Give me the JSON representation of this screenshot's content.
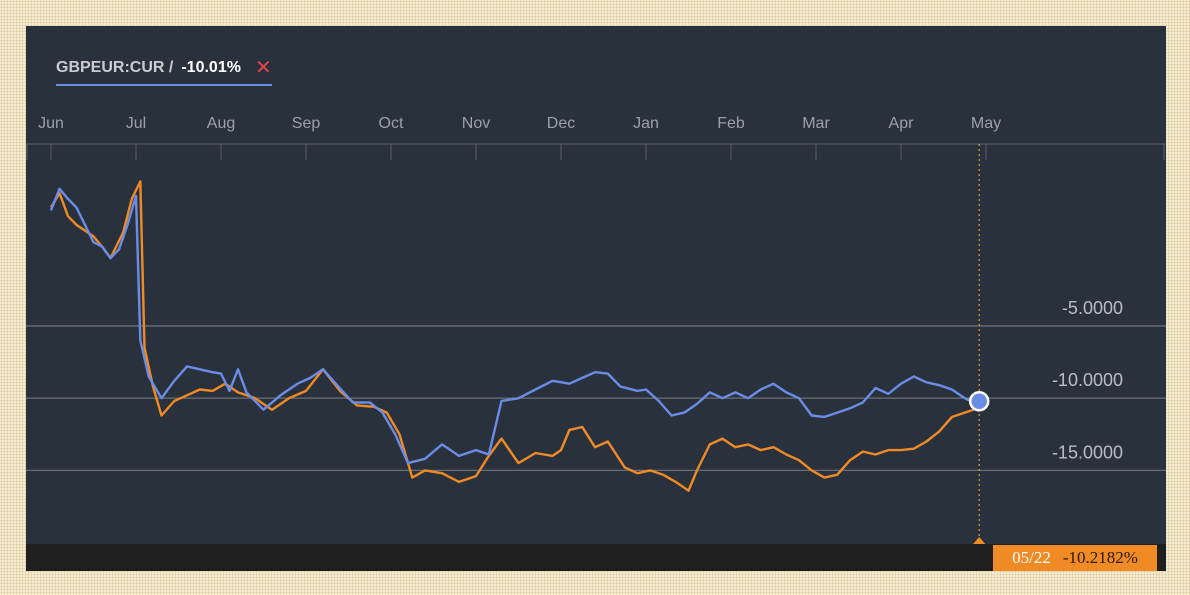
{
  "legend": {
    "symbol": "GBPEUR:CUR /",
    "change": "-10.01%",
    "close_glyph": "✕"
  },
  "crosshair": {
    "date_label": "05/22",
    "value_label": "-10.2182%"
  },
  "colors": {
    "primary_series": "#6b8ce6",
    "comparison_series": "#f08a24",
    "background": "#29313d"
  },
  "chart_data": {
    "type": "line",
    "title": "",
    "xlabel": "",
    "ylabel": "",
    "x_ticks": [
      "Jun",
      "Jul",
      "Aug",
      "Sep",
      "Oct",
      "Nov",
      "Dec",
      "Jan",
      "Feb",
      "Mar",
      "Apr",
      "May"
    ],
    "y_ticks": [
      -5,
      -10,
      -15
    ],
    "y_tick_labels": [
      "-5.0000",
      "-10.0000",
      "-15.0000"
    ],
    "ylim": [
      -20.1,
      7.6
    ],
    "xlim": [
      0,
      12.2
    ],
    "grid": true,
    "series": [
      {
        "name": "GBPEUR:CUR",
        "color": "#6b8ce6",
        "points": [
          [
            0.0,
            3.0
          ],
          [
            0.1,
            4.5
          ],
          [
            0.2,
            3.8
          ],
          [
            0.3,
            3.2
          ],
          [
            0.4,
            2.0
          ],
          [
            0.5,
            0.8
          ],
          [
            0.6,
            0.5
          ],
          [
            0.7,
            -0.3
          ],
          [
            0.8,
            0.3
          ],
          [
            0.9,
            2.0
          ],
          [
            1.0,
            4.0
          ],
          [
            1.05,
            -6.0
          ],
          [
            1.15,
            -8.5
          ],
          [
            1.3,
            -10.0
          ],
          [
            1.45,
            -8.8
          ],
          [
            1.6,
            -7.8
          ],
          [
            1.75,
            -8.0
          ],
          [
            1.9,
            -8.2
          ],
          [
            2.0,
            -8.3
          ],
          [
            2.1,
            -9.5
          ],
          [
            2.2,
            -8.0
          ],
          [
            2.3,
            -9.6
          ],
          [
            2.5,
            -10.8
          ],
          [
            2.7,
            -9.8
          ],
          [
            2.9,
            -9.0
          ],
          [
            3.05,
            -8.6
          ],
          [
            3.2,
            -8.0
          ],
          [
            3.35,
            -9.0
          ],
          [
            3.55,
            -10.3
          ],
          [
            3.75,
            -10.3
          ],
          [
            3.9,
            -11.0
          ],
          [
            4.05,
            -12.5
          ],
          [
            4.2,
            -14.5
          ],
          [
            4.4,
            -14.2
          ],
          [
            4.6,
            -13.2
          ],
          [
            4.8,
            -14.0
          ],
          [
            5.0,
            -13.6
          ],
          [
            5.15,
            -13.9
          ],
          [
            5.3,
            -10.2
          ],
          [
            5.5,
            -10.0
          ],
          [
            5.7,
            -9.4
          ],
          [
            5.9,
            -8.8
          ],
          [
            6.1,
            -9.0
          ],
          [
            6.25,
            -8.6
          ],
          [
            6.4,
            -8.2
          ],
          [
            6.55,
            -8.3
          ],
          [
            6.7,
            -9.2
          ],
          [
            6.9,
            -9.5
          ],
          [
            7.0,
            -9.4
          ],
          [
            7.15,
            -10.2
          ],
          [
            7.3,
            -11.2
          ],
          [
            7.45,
            -11.0
          ],
          [
            7.6,
            -10.4
          ],
          [
            7.75,
            -9.6
          ],
          [
            7.9,
            -10.0
          ],
          [
            8.05,
            -9.6
          ],
          [
            8.2,
            -10.0
          ],
          [
            8.35,
            -9.4
          ],
          [
            8.5,
            -9.0
          ],
          [
            8.65,
            -9.6
          ],
          [
            8.8,
            -10.0
          ],
          [
            8.95,
            -11.2
          ],
          [
            9.1,
            -11.3
          ],
          [
            9.25,
            -11.0
          ],
          [
            9.4,
            -10.7
          ],
          [
            9.55,
            -10.3
          ],
          [
            9.7,
            -9.3
          ],
          [
            9.85,
            -9.7
          ],
          [
            10.0,
            -9.0
          ],
          [
            10.15,
            -8.5
          ],
          [
            10.3,
            -8.9
          ],
          [
            10.45,
            -9.1
          ],
          [
            10.6,
            -9.4
          ],
          [
            10.75,
            -10.0
          ],
          [
            10.85,
            -10.3
          ],
          [
            10.92,
            -10.2
          ]
        ]
      },
      {
        "name": "",
        "color": "#f08a24",
        "points": [
          [
            0.0,
            3.2
          ],
          [
            0.1,
            4.2
          ],
          [
            0.2,
            2.6
          ],
          [
            0.3,
            2.0
          ],
          [
            0.4,
            1.6
          ],
          [
            0.5,
            1.2
          ],
          [
            0.6,
            0.5
          ],
          [
            0.7,
            -0.3
          ],
          [
            0.85,
            1.5
          ],
          [
            0.95,
            3.8
          ],
          [
            1.05,
            5.0
          ],
          [
            1.1,
            -6.5
          ],
          [
            1.2,
            -9.2
          ],
          [
            1.3,
            -11.2
          ],
          [
            1.45,
            -10.2
          ],
          [
            1.6,
            -9.8
          ],
          [
            1.75,
            -9.4
          ],
          [
            1.9,
            -9.5
          ],
          [
            2.05,
            -9.0
          ],
          [
            2.2,
            -9.6
          ],
          [
            2.4,
            -10.0
          ],
          [
            2.6,
            -10.8
          ],
          [
            2.8,
            -10.0
          ],
          [
            3.0,
            -9.5
          ],
          [
            3.2,
            -8.0
          ],
          [
            3.4,
            -9.5
          ],
          [
            3.6,
            -10.5
          ],
          [
            3.8,
            -10.6
          ],
          [
            3.95,
            -11.0
          ],
          [
            4.1,
            -12.5
          ],
          [
            4.25,
            -15.5
          ],
          [
            4.4,
            -15.0
          ],
          [
            4.6,
            -15.2
          ],
          [
            4.8,
            -15.8
          ],
          [
            5.0,
            -15.4
          ],
          [
            5.15,
            -14.0
          ],
          [
            5.3,
            -12.8
          ],
          [
            5.5,
            -14.5
          ],
          [
            5.7,
            -13.8
          ],
          [
            5.9,
            -14.0
          ],
          [
            6.0,
            -13.6
          ],
          [
            6.1,
            -12.2
          ],
          [
            6.25,
            -12.0
          ],
          [
            6.4,
            -13.4
          ],
          [
            6.55,
            -13.0
          ],
          [
            6.75,
            -14.8
          ],
          [
            6.9,
            -15.2
          ],
          [
            7.05,
            -15.0
          ],
          [
            7.2,
            -15.3
          ],
          [
            7.35,
            -15.8
          ],
          [
            7.5,
            -16.4
          ],
          [
            7.6,
            -15.0
          ],
          [
            7.75,
            -13.2
          ],
          [
            7.9,
            -12.8
          ],
          [
            8.05,
            -13.4
          ],
          [
            8.2,
            -13.2
          ],
          [
            8.35,
            -13.6
          ],
          [
            8.5,
            -13.4
          ],
          [
            8.65,
            -13.9
          ],
          [
            8.8,
            -14.3
          ],
          [
            8.95,
            -15.0
          ],
          [
            9.1,
            -15.5
          ],
          [
            9.25,
            -15.3
          ],
          [
            9.4,
            -14.3
          ],
          [
            9.55,
            -13.7
          ],
          [
            9.7,
            -13.9
          ],
          [
            9.85,
            -13.6
          ],
          [
            10.0,
            -13.6
          ],
          [
            10.15,
            -13.5
          ],
          [
            10.3,
            -13.0
          ],
          [
            10.45,
            -12.3
          ],
          [
            10.6,
            -11.3
          ],
          [
            10.75,
            -11.0
          ],
          [
            10.85,
            -10.8
          ],
          [
            10.92,
            -10.2
          ]
        ]
      }
    ],
    "crosshair_x": 10.92,
    "crosshair_value": -10.2182
  }
}
